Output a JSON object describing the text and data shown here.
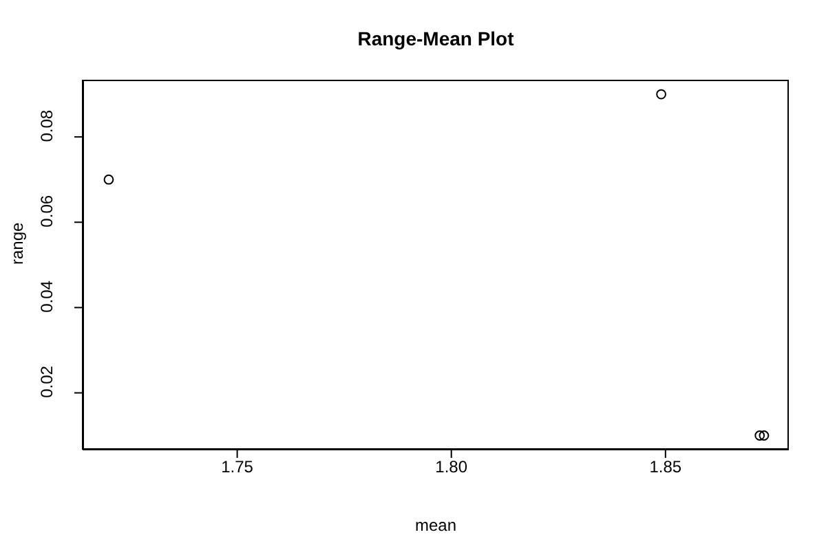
{
  "chart_data": {
    "type": "scatter",
    "title": "Range-Mean Plot",
    "xlabel": "mean",
    "ylabel": "range",
    "x": [
      1.72,
      1.849,
      1.872,
      1.873
    ],
    "series": [
      {
        "color": "#000000",
        "values": [
          0.07,
          0.09,
          0.01,
          0.01
        ]
      }
    ],
    "xlim": [
      1.7139,
      1.8788
    ],
    "ylim": [
      0.0067,
      0.0934
    ],
    "xticks": [
      1.75,
      {
        "value": 1.8,
        "label": "1.80"
      },
      1.85
    ],
    "yticks": [
      0.02,
      0.04,
      0.06,
      0.08
    ],
    "marker": "circle",
    "grid": false
  }
}
